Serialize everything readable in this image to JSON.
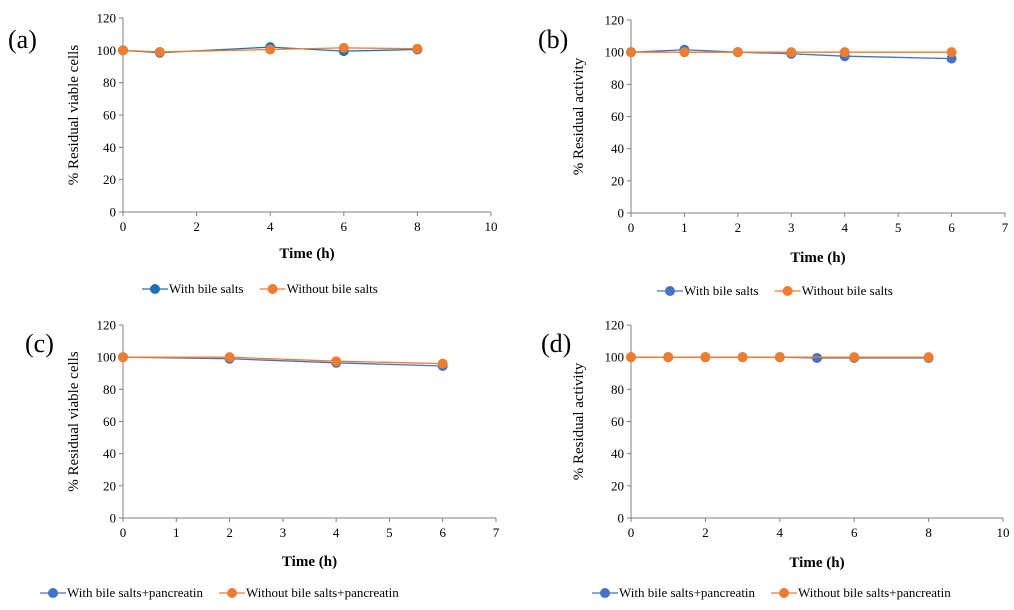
{
  "chart_data": [
    {
      "type": "line",
      "panel_label": "(a)",
      "xlabel": "Time (h)",
      "ylabel": "% Residual viable cells",
      "xlim": [
        0,
        10
      ],
      "xticks": [
        0,
        2,
        4,
        6,
        8,
        10
      ],
      "ylim": [
        0,
        120
      ],
      "yticks": [
        0,
        20,
        40,
        60,
        80,
        100,
        120
      ],
      "grid": false,
      "legend_position": "bottom",
      "series": [
        {
          "name": "With bile salts",
          "color": "#1f6fb4",
          "x": [
            0,
            1,
            4,
            6,
            8
          ],
          "y": [
            100,
            98.5,
            102,
            99.5,
            100.5
          ]
        },
        {
          "name": "Without bile salts",
          "color": "#ed7d31",
          "x": [
            0,
            1,
            4,
            6,
            8
          ],
          "y": [
            100,
            99,
            100.5,
            101.5,
            101
          ]
        }
      ]
    },
    {
      "type": "line",
      "panel_label": "(b)",
      "xlabel": "Time (h)",
      "ylabel": "% Residual activity",
      "xlim": [
        0,
        7
      ],
      "xticks": [
        0,
        1,
        2,
        3,
        4,
        5,
        6,
        7
      ],
      "ylim": [
        0,
        120
      ],
      "yticks": [
        0,
        20,
        40,
        60,
        80,
        100,
        120
      ],
      "grid": false,
      "legend_position": "bottom",
      "series": [
        {
          "name": "With bile salts",
          "color": "#4472c4",
          "x": [
            0,
            1,
            2,
            3,
            4,
            6
          ],
          "y": [
            100,
            101.5,
            100,
            99,
            97.5,
            96
          ]
        },
        {
          "name": "Without bile salts",
          "color": "#ed7d31",
          "x": [
            0,
            1,
            2,
            3,
            4,
            6
          ],
          "y": [
            100,
            100,
            100,
            100,
            100,
            100
          ]
        }
      ]
    },
    {
      "type": "line",
      "panel_label": "(c)",
      "xlabel": "Time (h)",
      "ylabel": "% Residual viable cells",
      "xlim": [
        0,
        7
      ],
      "xticks": [
        0,
        1,
        2,
        3,
        4,
        5,
        6,
        7
      ],
      "ylim": [
        0,
        120
      ],
      "yticks": [
        0,
        20,
        40,
        60,
        80,
        100,
        120
      ],
      "grid": false,
      "legend_position": "bottom",
      "series": [
        {
          "name": "With bile salts+pancreatin",
          "color": "#4472c4",
          "x": [
            0,
            2,
            4,
            6
          ],
          "y": [
            100,
            99,
            96.5,
            94.5
          ]
        },
        {
          "name": "Without bile salts+pancreatin",
          "color": "#ed7d31",
          "x": [
            0,
            2,
            4,
            6
          ],
          "y": [
            100,
            100,
            97.5,
            96
          ]
        }
      ]
    },
    {
      "type": "line",
      "panel_label": "(d)",
      "xlabel": "Time (h)",
      "ylabel": "% Residual activity",
      "xlim": [
        0,
        10
      ],
      "xticks": [
        0,
        2,
        4,
        6,
        8,
        10
      ],
      "ylim": [
        0,
        120
      ],
      "yticks": [
        0,
        20,
        40,
        60,
        80,
        100,
        120
      ],
      "grid": false,
      "legend_position": "bottom",
      "series": [
        {
          "name": "With bile salts+pancreatin",
          "color": "#4472c4",
          "x": [
            0,
            1,
            2,
            3,
            4,
            5,
            6,
            8
          ],
          "y": [
            100,
            100,
            100,
            100,
            100,
            99.5,
            99.5,
            99.5
          ]
        },
        {
          "name": "Without bile salts+pancreatin",
          "color": "#ed7d31",
          "x": [
            0,
            1,
            2,
            3,
            4,
            6,
            8
          ],
          "y": [
            100,
            100,
            100,
            100,
            100,
            100,
            100
          ]
        }
      ]
    }
  ]
}
